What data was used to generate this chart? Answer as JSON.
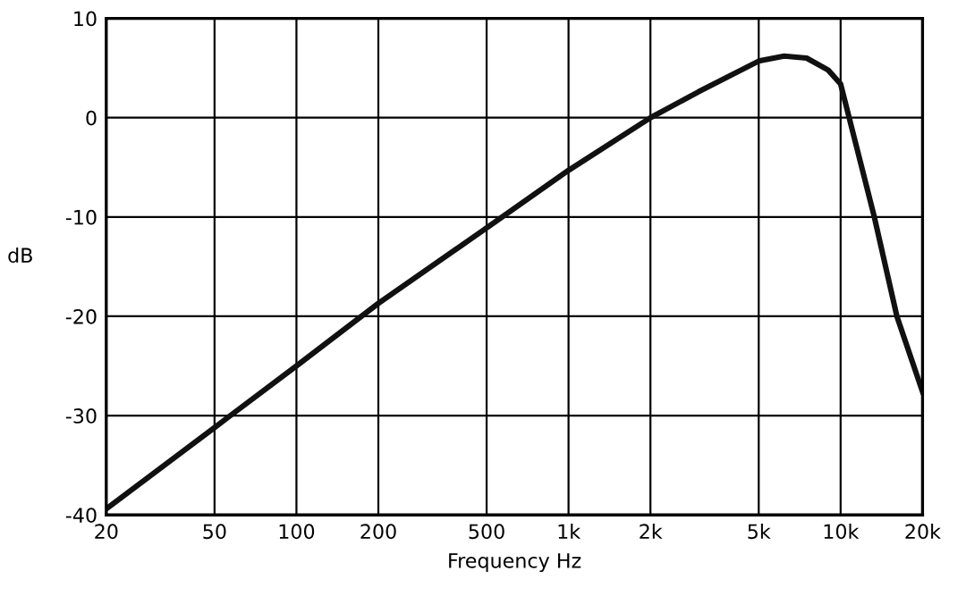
{
  "chart_data": {
    "type": "line",
    "xlabel": "Frequency Hz",
    "ylabel": "dB",
    "log": "x",
    "xlim": [
      20,
      20000
    ],
    "ylim": [
      -40,
      10
    ],
    "xticks": [
      20,
      50,
      100,
      200,
      500,
      {
        "value": 1000,
        "label": "1k"
      },
      {
        "value": 2000,
        "label": "2k"
      },
      {
        "value": 5000,
        "label": "5k"
      },
      {
        "value": 10000,
        "label": "10k"
      },
      {
        "value": 20000,
        "label": "20k"
      }
    ],
    "yticks": [
      -40,
      -30,
      -20,
      -10,
      0,
      10
    ],
    "grid": true,
    "marker": "none",
    "line_style": "solid",
    "series": [
      {
        "color": "#111111",
        "x": [
          20,
          50,
          100,
          200,
          500,
          1000,
          2000,
          3000,
          5000,
          6200,
          7500,
          9000,
          10000,
          13300,
          16100,
          20000
        ],
        "values": [
          -39.4,
          -31.2,
          -25,
          -18.7,
          -11.1,
          -5.3,
          0,
          2.6,
          5.7,
          6.2,
          6.0,
          4.8,
          3.4,
          -10,
          -20,
          -27.6
        ]
      }
    ]
  }
}
